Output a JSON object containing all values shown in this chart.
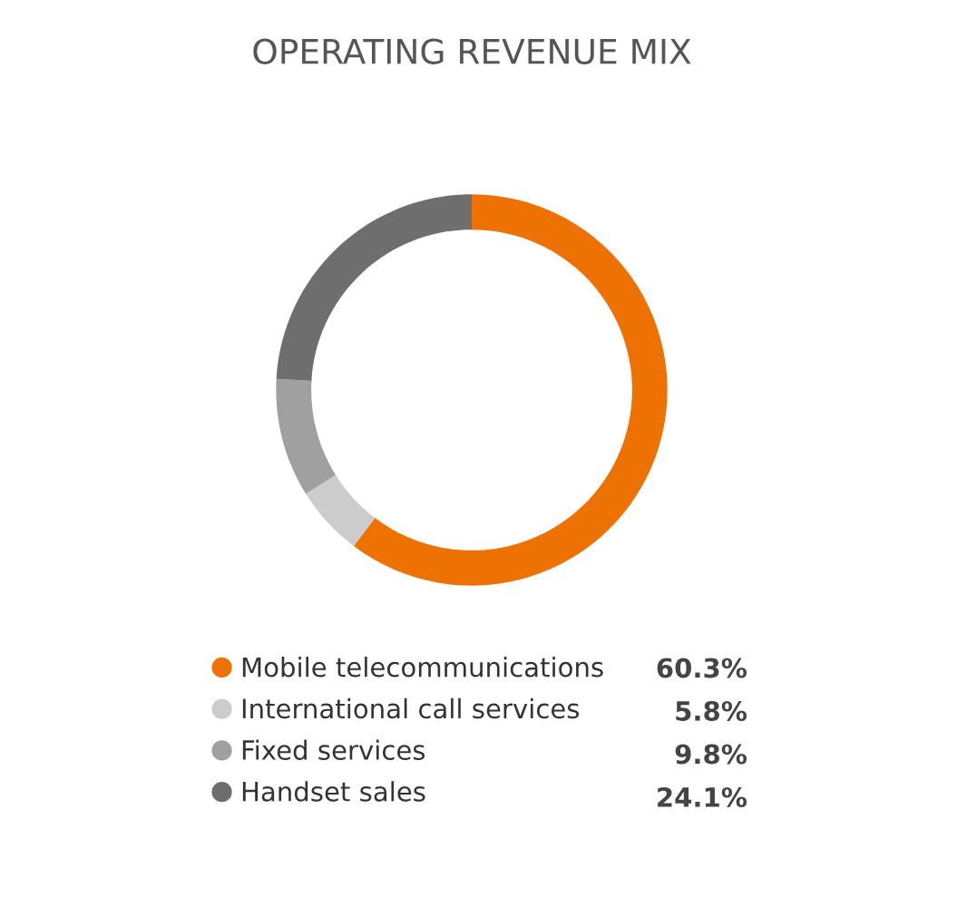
{
  "chart_data": {
    "type": "donut",
    "title": "OPERATING REVENUE MIX",
    "categories": [
      "Mobile telecommunications",
      "International call services",
      "Fixed services",
      "Handset sales"
    ],
    "values": [
      60.3,
      5.8,
      9.8,
      24.1
    ],
    "colors": [
      "#ee7203",
      "#cccccc",
      "#a0a0a0",
      "#6e6e6e"
    ],
    "value_labels": [
      "60.3%",
      "5.8%",
      "9.8%",
      "24.1%"
    ],
    "legend": "bottom"
  }
}
